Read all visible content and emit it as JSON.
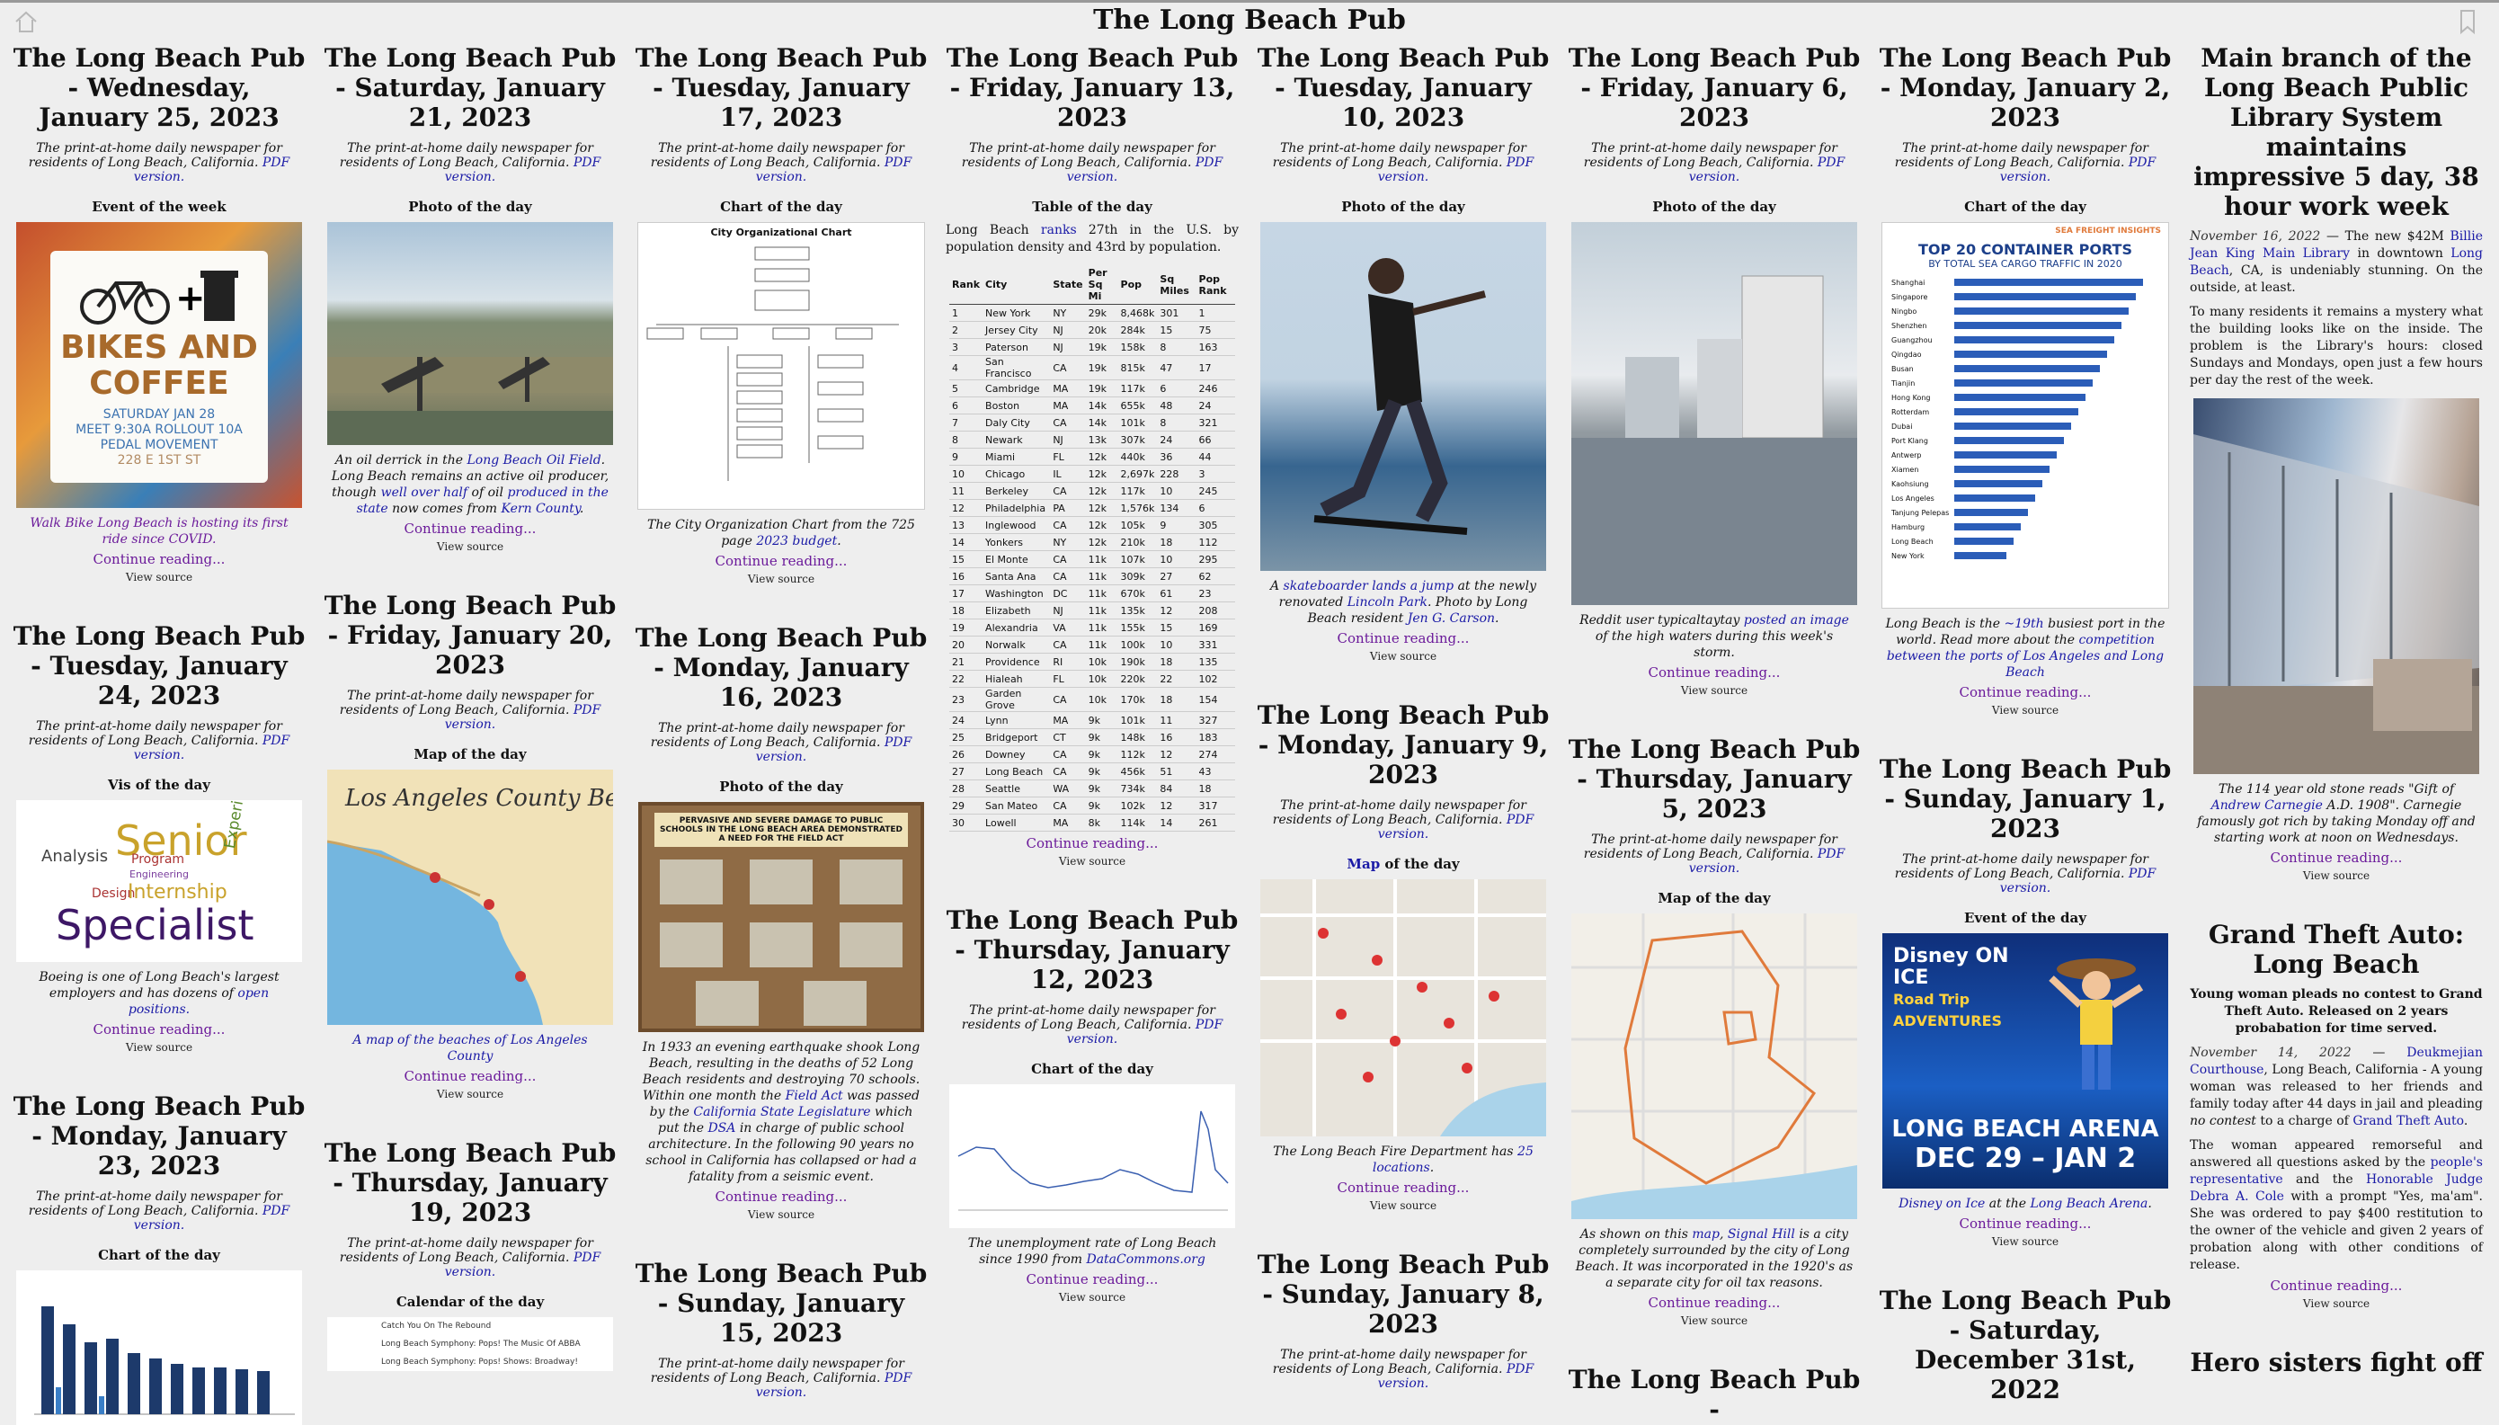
{
  "site_title": "The Long Beach Pub",
  "common": {
    "tagline_before": "The print-at-home daily newspaper for residents of Long Beach, California.",
    "pdf_label": "PDF version.",
    "continue": "Continue reading...",
    "view_source": "View source"
  },
  "labels": {
    "event": "Event of the week",
    "photo": "Photo of the day",
    "chart": "Chart of the day",
    "table": "Table of the day",
    "vis": "Vis of the day",
    "map": "Map of the day",
    "calendar": "Calendar of the day",
    "event_day": "Event of the day"
  },
  "posts": {
    "jan25": {
      "title": "The Long Beach Pub - Wednesday, January 25, 2023",
      "img_text": [
        "BIKES AND",
        "COFFEE",
        "SATURDAY JAN 28",
        "MEET 9:30A ROLLOUT 10A",
        "PEDAL MOVEMENT",
        "228 E 1ST ST"
      ],
      "caption_link": "Walk Bike Long Beach is hosting its first ride since COVID."
    },
    "jan24": {
      "title": "The Long Beach Pub - Tuesday, January 24, 2023",
      "vis_words": [
        "Senior",
        "Analysis",
        "Program",
        "Engineering",
        "Design",
        "Internship",
        "Experienced",
        "Specialist"
      ],
      "caption": "Boeing is one of Long Beach's largest employers and has dozens of",
      "caption_link": "open positions."
    },
    "jan23": {
      "title": "The Long Beach Pub - Monday, January 23, 2023"
    },
    "jan21": {
      "title": "The Long Beach Pub - Saturday, January 21, 2023",
      "cap_1": "An oil derrick in the",
      "cap_link1": "Long Beach Oil Field",
      "cap_2": ". Long Beach remains an active oil producer, though",
      "cap_link2": "well over half",
      "cap_3": "of oil",
      "cap_link3": "produced in the state",
      "cap_4": "now comes from",
      "cap_link4": "Kern County",
      "cap_5": "."
    },
    "jan20": {
      "title": "The Long Beach Pub - Friday, January 20, 2023",
      "img_title": "Los Angeles County Beaches",
      "caption_link": "A map of the beaches of Los Angeles County"
    },
    "jan19": {
      "title": "The Long Beach Pub - Thursday, January 19, 2023",
      "cal_rows": [
        "Catch You On The Rebound",
        "Long Beach Symphony: Pops! The Music Of ABBA",
        "Long Beach Symphony: Pops! Shows: Broadway!"
      ]
    },
    "jan17": {
      "title": "The Long Beach Pub - Tuesday, January 17, 2023",
      "img_title": "City Organizational Chart",
      "cap_1": "The City Organization Chart from the 725 page",
      "cap_link": "2023 budget",
      "cap_2": "."
    },
    "jan16": {
      "title": "The Long Beach Pub - Monday, January 16, 2023",
      "img_text": "PERVASIVE AND SEVERE DAMAGE TO PUBLIC SCHOOLS IN THE LONG BEACH AREA DEMONSTRATED A NEED FOR THE FIELD ACT",
      "cap_1": "In 1933 an evening earthquake shook Long Beach, resulting in the deaths of 52 Long Beach residents and destroying 70 schools. Within one month the",
      "cap_link1": "Field Act",
      "cap_2": "was passed by the",
      "cap_link2": "California State Legislature",
      "cap_3": "which put the",
      "cap_link3": "DSA",
      "cap_4": "in charge of public school architecture. In the following 90 years no school in California has collapsed or had a fatality from a seismic event."
    },
    "jan15": {
      "title": "The Long Beach Pub - Sunday, January 15, 2023"
    },
    "jan13": {
      "title": "The Long Beach Pub - Friday, January 13, 2023",
      "intro_1": "Long Beach",
      "intro_link": "ranks",
      "intro_2": "27th in the U.S. by population density and 43rd by population.",
      "table_headers": [
        "Rank",
        "City",
        "State",
        "Per Sq Mi",
        "Pop",
        "Sq Miles",
        "Pop Rank"
      ],
      "table_rows": [
        [
          "1",
          "New York",
          "NY",
          "29k",
          "8,468k",
          "301",
          "1"
        ],
        [
          "2",
          "Jersey City",
          "NJ",
          "20k",
          "284k",
          "15",
          "75"
        ],
        [
          "3",
          "Paterson",
          "NJ",
          "19k",
          "158k",
          "8",
          "163"
        ],
        [
          "4",
          "San Francisco",
          "CA",
          "19k",
          "815k",
          "47",
          "17"
        ],
        [
          "5",
          "Cambridge",
          "MA",
          "19k",
          "117k",
          "6",
          "246"
        ],
        [
          "6",
          "Boston",
          "MA",
          "14k",
          "655k",
          "48",
          "24"
        ],
        [
          "7",
          "Daly City",
          "CA",
          "14k",
          "101k",
          "8",
          "321"
        ],
        [
          "8",
          "Newark",
          "NJ",
          "13k",
          "307k",
          "24",
          "66"
        ],
        [
          "9",
          "Miami",
          "FL",
          "12k",
          "440k",
          "36",
          "44"
        ],
        [
          "10",
          "Chicago",
          "IL",
          "12k",
          "2,697k",
          "228",
          "3"
        ],
        [
          "11",
          "Berkeley",
          "CA",
          "12k",
          "117k",
          "10",
          "245"
        ],
        [
          "12",
          "Philadelphia",
          "PA",
          "12k",
          "1,576k",
          "134",
          "6"
        ],
        [
          "13",
          "Inglewood",
          "CA",
          "12k",
          "105k",
          "9",
          "305"
        ],
        [
          "14",
          "Yonkers",
          "NY",
          "12k",
          "210k",
          "18",
          "112"
        ],
        [
          "15",
          "El Monte",
          "CA",
          "11k",
          "107k",
          "10",
          "295"
        ],
        [
          "16",
          "Santa Ana",
          "CA",
          "11k",
          "309k",
          "27",
          "62"
        ],
        [
          "17",
          "Washington",
          "DC",
          "11k",
          "670k",
          "61",
          "23"
        ],
        [
          "18",
          "Elizabeth",
          "NJ",
          "11k",
          "135k",
          "12",
          "208"
        ],
        [
          "19",
          "Alexandria",
          "VA",
          "11k",
          "155k",
          "15",
          "169"
        ],
        [
          "20",
          "Norwalk",
          "CA",
          "11k",
          "100k",
          "10",
          "331"
        ],
        [
          "21",
          "Providence",
          "RI",
          "10k",
          "190k",
          "18",
          "135"
        ],
        [
          "22",
          "Hialeah",
          "FL",
          "10k",
          "220k",
          "22",
          "102"
        ],
        [
          "23",
          "Garden Grove",
          "CA",
          "10k",
          "170k",
          "18",
          "154"
        ],
        [
          "24",
          "Lynn",
          "MA",
          "9k",
          "101k",
          "11",
          "327"
        ],
        [
          "25",
          "Bridgeport",
          "CT",
          "9k",
          "148k",
          "16",
          "183"
        ],
        [
          "26",
          "Downey",
          "CA",
          "9k",
          "112k",
          "12",
          "274"
        ],
        [
          "27",
          "Long Beach",
          "CA",
          "9k",
          "456k",
          "51",
          "43"
        ],
        [
          "28",
          "Seattle",
          "WA",
          "9k",
          "734k",
          "84",
          "18"
        ],
        [
          "29",
          "San Mateo",
          "CA",
          "9k",
          "102k",
          "12",
          "317"
        ],
        [
          "30",
          "Lowell",
          "MA",
          "8k",
          "114k",
          "14",
          "261"
        ]
      ]
    },
    "jan12": {
      "title": "The Long Beach Pub - Thursday, January 12, 2023",
      "caption_1": "The unemployment rate of Long Beach since 1990 from",
      "caption_link": "DataCommons.org"
    },
    "jan10": {
      "title": "The Long Beach Pub - Tuesday, January 10, 2023",
      "cap_1": "A",
      "cap_link1": "skateboarder lands a jump",
      "cap_2": "at the newly renovated",
      "cap_link2": "Lincoln Park",
      "cap_3": ". Photo by Long Beach resident",
      "cap_link3": "Jen G. Carson",
      "cap_4": "."
    },
    "jan9": {
      "title": "The Long Beach Pub - Monday, January 9, 2023",
      "map_label_link": "Map",
      "map_label_rest": "of the day",
      "cap_1": "The Long Beach Fire Department has",
      "cap_link": "25 locations",
      "cap_2": "."
    },
    "jan8": {
      "title": "The Long Beach Pub - Sunday, January 8, 2023"
    },
    "jan6": {
      "title": "The Long Beach Pub - Friday, January 6, 2023",
      "cap_1": "Reddit user typicaltaytay",
      "cap_link": "posted an image",
      "cap_2": "of the high waters during this week's storm."
    },
    "jan5": {
      "title": "The Long Beach Pub - Thursday, January 5, 2023",
      "cap_1": "As shown on this",
      "cap_link1": "map",
      "cap_2": ",",
      "cap_link2": "Signal Hill",
      "cap_3": "is a city completely surrounded by the city of Long Beach. It was incorporated in the 1920's as a separate city for oil tax reasons."
    },
    "jan5_next_title": "The Long Beach Pub -",
    "jan2": {
      "title": "The Long Beach Pub - Monday, January 2, 2023",
      "img_top": "SEA FREIGHT INSIGHTS",
      "img_title1": "TOP 20 CONTAINER PORTS",
      "img_title2": "BY TOTAL SEA CARGO TRAFFIC IN 2020",
      "ports": [
        "Shanghai",
        "Singapore",
        "Ningbo",
        "Shenzhen",
        "Guangzhou",
        "Qingdao",
        "Busan",
        "Tianjin",
        "Hong Kong",
        "Rotterdam",
        "Dubai",
        "Port Klang",
        "Antwerp",
        "Xiamen",
        "Kaohsiung",
        "Los Angeles",
        "Tanjung Pelepas",
        "Hamburg",
        "Long Beach",
        "New York"
      ],
      "cap_1": "Long Beach is the",
      "cap_link1": "~19th",
      "cap_2": "busiest port in the world. Read more about the",
      "cap_link2": "competition between the ports of Los Angeles and Long Beach"
    },
    "jan1": {
      "title": "The Long Beach Pub - Sunday, January 1, 2023",
      "img_line1": "Disney ON ICE",
      "img_line2": "Road Trip ADVENTURES",
      "img_line3": "LONG BEACH ARENA",
      "img_line4": "DEC 29 – JAN 2",
      "cap_1": "Disney on Ice",
      "cap_2": "at the",
      "cap_link": "Long Beach Arena",
      "cap_3": "."
    },
    "dec31": {
      "title": "The Long Beach Pub - Saturday, December 31st, 2022"
    },
    "library": {
      "title": "Main branch of the Long Beach Public Library System maintains impressive 5 day, 38 hour work week",
      "date": "November 16, 2022",
      "p1_a": "— The new $42M",
      "p1_link1": "Billie Jean King Main Library",
      "p1_b": "in downtown",
      "p1_link2": "Long Beach",
      "p1_c": ", CA, is undeniably stunning. On the outside, at least.",
      "p2": "To many residents it remains a mystery what the building looks like on the inside. The problem is the Library's hours: closed Sundays and Mondays, open just a few hours per day the rest of the week.",
      "cap_1": "The 114 year old stone reads \"Gift of",
      "cap_link": "Andrew Carnegie",
      "cap_2": "A.D. 1908\". Carnegie famously got rich by taking Monday off and starting work at noon on Wednesdays."
    },
    "gta": {
      "title": "Grand Theft Auto: Long Beach",
      "subtitle": "Young woman pleads no contest to Grand Theft Auto. Released on 2 years probabation for time served.",
      "date": "November 14, 2022",
      "p1_a": "—",
      "p1_link1": "Deukmejian Courthouse",
      "p1_b": ", Long Beach, California - A young woman was released to her friends and family today after 44 days in jail and pleading",
      "p1_em": "no contest",
      "p1_c": "to a charge of",
      "p1_link2": "Grand Theft Auto",
      "p1_d": ".",
      "p2_a": "The woman appeared remorseful and answered all questions asked by the",
      "p2_link1": "people's representative",
      "p2_b": "and the",
      "p2_link2": "Honorable Judge Debra A. Cole",
      "p2_c": "with a prompt \"Yes, ma'am\". She was ordered to pay $400 restitution to the owner of the vehicle and given 2 years of probation along with other conditions of release."
    },
    "hero_title": "Hero sisters fight off"
  },
  "icons": {
    "home": "home-icon",
    "bookmark": "bookmark-icon"
  }
}
